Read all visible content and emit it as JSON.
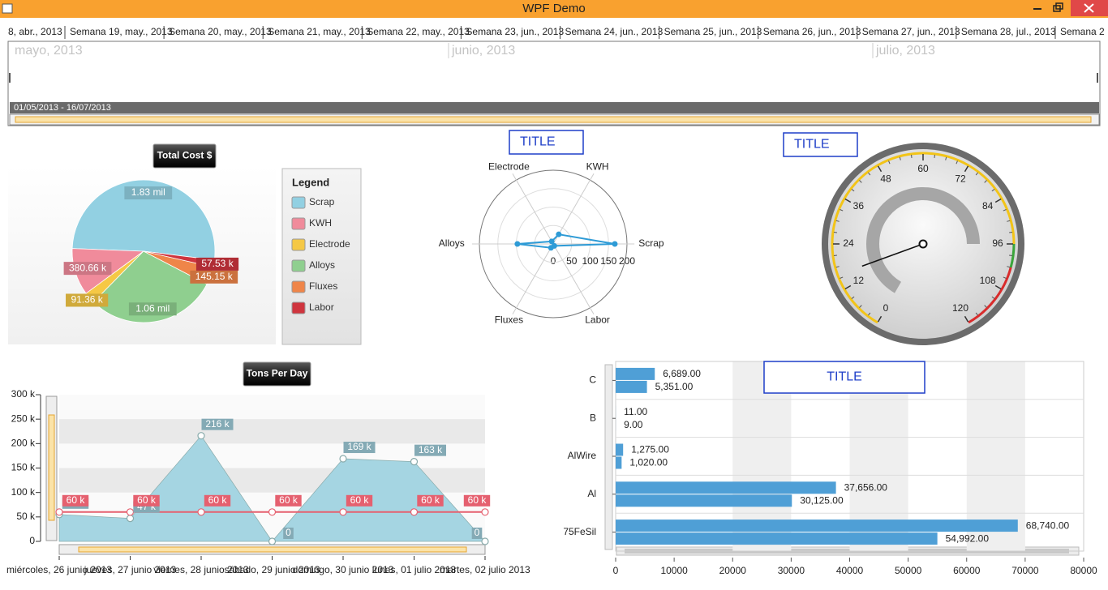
{
  "window": {
    "title": "WPF Demo"
  },
  "timeline": {
    "weeks": [
      "8, abr., 2013",
      "Semana 19, may., 2013",
      "Semana 20, may., 2013",
      "Semana 21, may., 2013",
      "Semana 22, may., 2013",
      "Semana 23, jun., 2013",
      "Semana 24, jun., 2013",
      "Semana 25, jun., 2013",
      "Semana 26, jun., 2013",
      "Semana 27, jun., 2013",
      "Semana 28, jul., 2013",
      "Semana 2"
    ],
    "months": [
      "mayo, 2013",
      "junio, 2013",
      "julio, 2013"
    ],
    "range": "01/05/2013 - 16/07/2013"
  },
  "chart_data": [
    {
      "type": "pie",
      "title": "Total Cost $",
      "legend_title": "Legend",
      "categories": [
        "Scrap",
        "KWH",
        "Electrode",
        "Alloys",
        "Fluxes",
        "Labor"
      ],
      "values": [
        1830000,
        380660,
        91360,
        1060000,
        145150,
        57530
      ],
      "value_labels": [
        "1.83 mil",
        "380.66 k",
        "91.36 k",
        "1.06 mil",
        "145.15 k",
        "57.53 k"
      ],
      "colors": [
        "#92d0e2",
        "#f08b9b",
        "#f5c845",
        "#8fcf8f",
        "#ef8549",
        "#cf353e"
      ]
    },
    {
      "type": "radar",
      "title": "TITLE",
      "categories": [
        "Scrap",
        "KWH",
        "Electrode",
        "Alloys",
        "Fluxes",
        "Labor"
      ],
      "values": [
        167,
        30,
        8,
        97,
        12,
        6
      ],
      "ylim": [
        0,
        200
      ],
      "yticks": [
        0,
        50,
        100,
        150,
        200
      ],
      "color": "#2e9bd6"
    },
    {
      "type": "gauge",
      "title": "TITLE",
      "value": 16,
      "range_value": 96,
      "ylim": [
        0,
        120
      ],
      "yticks": [
        0,
        12,
        24,
        36,
        48,
        60,
        72,
        84,
        96,
        108,
        120
      ],
      "ranges": [
        {
          "from": 0,
          "to": 96,
          "color": "#f2c418"
        },
        {
          "from": 96,
          "to": 102,
          "color": "#3aa53a"
        },
        {
          "from": 102,
          "to": 120,
          "color": "#d92b2b"
        }
      ]
    },
    {
      "type": "area",
      "title": "Tons Per Day",
      "categories": [
        "miércoles, 26 junio 2013",
        "jueves, 27 junio 2013",
        "viernes, 28 junio 2013",
        "sábado, 29 junio 2013",
        "domingo, 30 junio 2013",
        "lunes, 01 julio 2013",
        "martes, 02 julio 2013"
      ],
      "series": [
        {
          "type": "area",
          "color": "#a5d5e2",
          "values": [
            55000,
            47000,
            216000,
            0,
            169000,
            163000,
            0
          ],
          "value_labels": [
            "55 k",
            "47 k",
            "216 k",
            "0",
            "169 k",
            "163 k",
            "0"
          ]
        },
        {
          "type": "line",
          "color": "#e5606f",
          "values": [
            60000,
            60000,
            60000,
            60000,
            60000,
            60000,
            60000
          ],
          "value_labels": [
            "60 k",
            "60 k",
            "60 k",
            "60 k",
            "60 k",
            "60 k",
            "60 k"
          ]
        }
      ],
      "ylim": [
        0,
        300000
      ],
      "yticks": [
        0,
        {
          "value": 50000,
          "label": "50 k"
        },
        {
          "value": 100000,
          "label": "100 k"
        },
        {
          "value": 150000,
          "label": "150 k"
        },
        {
          "value": 200000,
          "label": "200 k"
        },
        {
          "value": 250000,
          "label": "250 k"
        },
        {
          "value": 300000,
          "label": "300 k"
        }
      ]
    },
    {
      "type": "bar",
      "horizontal": true,
      "title": "TITLE",
      "categories": [
        "C",
        "B",
        "AlWire",
        "Al",
        "75FeSil"
      ],
      "series": [
        {
          "color": "#4f9fd6",
          "values": [
            6689,
            11,
            1275,
            37656,
            68740
          ],
          "value_labels": [
            "6,689.00",
            "11.00",
            "1,275.00",
            "37,656.00",
            "68,740.00"
          ]
        },
        {
          "color": "#4f9fd6",
          "values": [
            5351,
            9,
            1020,
            30125,
            54992
          ],
          "value_labels": [
            "5,351.00",
            "9.00",
            "1,020.00",
            "30,125.00",
            "54,992.00"
          ]
        }
      ],
      "xlim": [
        0,
        80000
      ],
      "xticks": [
        0,
        10000,
        20000,
        30000,
        40000,
        50000,
        60000,
        70000,
        80000
      ]
    }
  ]
}
